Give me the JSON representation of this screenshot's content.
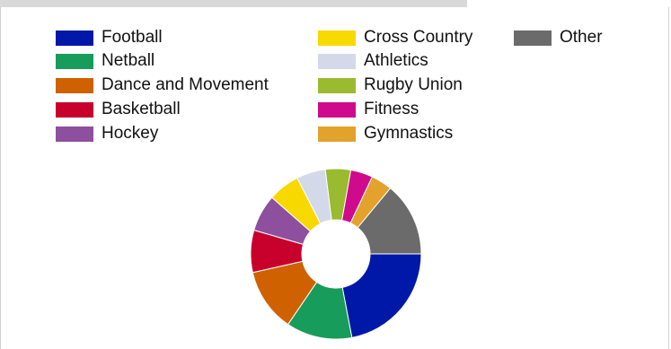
{
  "chart_data": {
    "type": "pie",
    "variant": "donut",
    "title": "",
    "legend_position": "top",
    "categories": [
      "Football",
      "Netball",
      "Dance and Movement",
      "Basketball",
      "Hockey",
      "Cross Country",
      "Athletics",
      "Rugby Union",
      "Fitness",
      "Gymnastics",
      "Other"
    ],
    "values": [
      22.0,
      12.5,
      12.0,
      8.0,
      7.0,
      6.0,
      5.5,
      4.8,
      4.2,
      4.0,
      14.0
    ],
    "colors": [
      "#0018a8",
      "#179c5b",
      "#d06100",
      "#c7002c",
      "#8e4f9e",
      "#f7d900",
      "#d4d9ea",
      "#9aba2f",
      "#cf0a8c",
      "#e3a22c",
      "#6b6b6b"
    ]
  }
}
